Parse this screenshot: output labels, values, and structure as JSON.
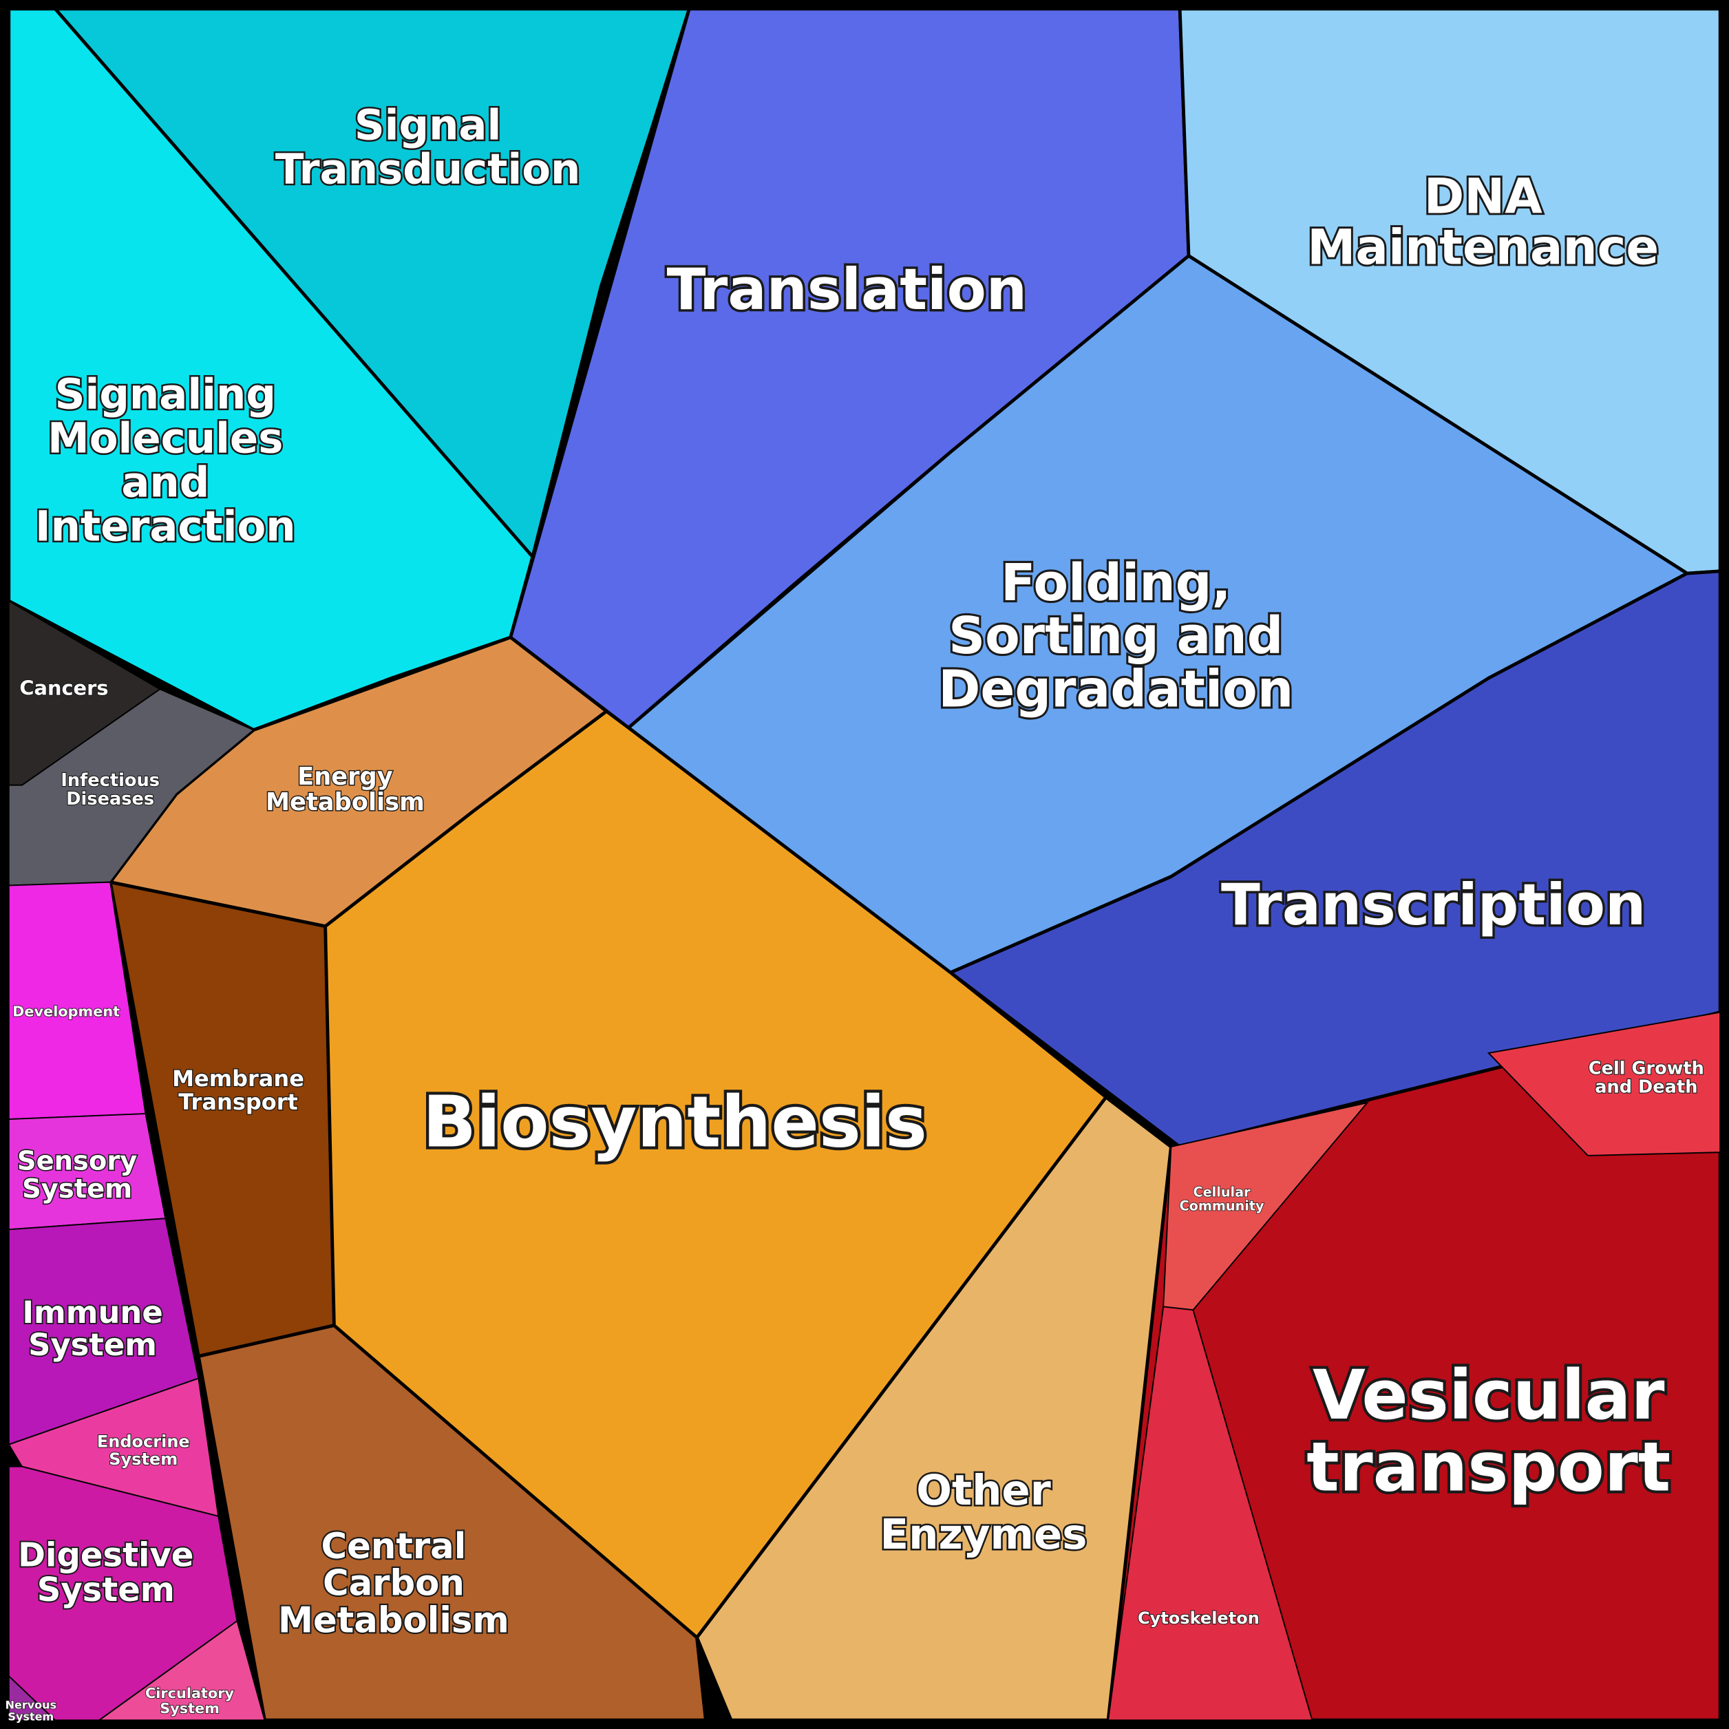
{
  "regions": [
    {
      "label": [
        "Signal",
        "Transduction"
      ]
    },
    {
      "label": [
        "Signaling",
        "Molecules",
        "and",
        "Interaction"
      ]
    },
    {
      "label": [
        "Translation"
      ]
    },
    {
      "label": [
        "DNA",
        "Maintenance"
      ]
    },
    {
      "label": [
        "Folding,",
        "Sorting and",
        "Degradation"
      ]
    },
    {
      "label": [
        "Transcription"
      ]
    },
    {
      "label": [
        "Vesicular",
        "transport"
      ]
    },
    {
      "label": [
        "Other",
        "Enzymes"
      ]
    },
    {
      "label": [
        "Biosynthesis"
      ]
    },
    {
      "label": [
        "Energy",
        "Metabolism"
      ]
    },
    {
      "label": [
        "Membrane",
        "Transport"
      ]
    },
    {
      "label": [
        "Central",
        "Carbon",
        "Metabolism"
      ]
    }
  ],
  "subregions": [
    {
      "label": [
        "Cancers"
      ]
    },
    {
      "label": [
        "Infectious",
        "Diseases"
      ]
    },
    {
      "label": [
        "Development"
      ]
    },
    {
      "label": [
        "Sensory",
        "System"
      ]
    },
    {
      "label": [
        "Immune",
        "System"
      ]
    },
    {
      "label": [
        "Endocrine",
        "System"
      ]
    },
    {
      "label": [
        "Digestive",
        "System"
      ]
    },
    {
      "label": [
        "Circulatory",
        "System"
      ]
    },
    {
      "label": [
        "Nervous",
        "System"
      ]
    },
    {
      "label": [
        "Cell Growth",
        "and Death"
      ]
    },
    {
      "label": [
        "Cellular",
        "Community"
      ]
    },
    {
      "label": [
        "Cytoskeleton"
      ]
    }
  ]
}
